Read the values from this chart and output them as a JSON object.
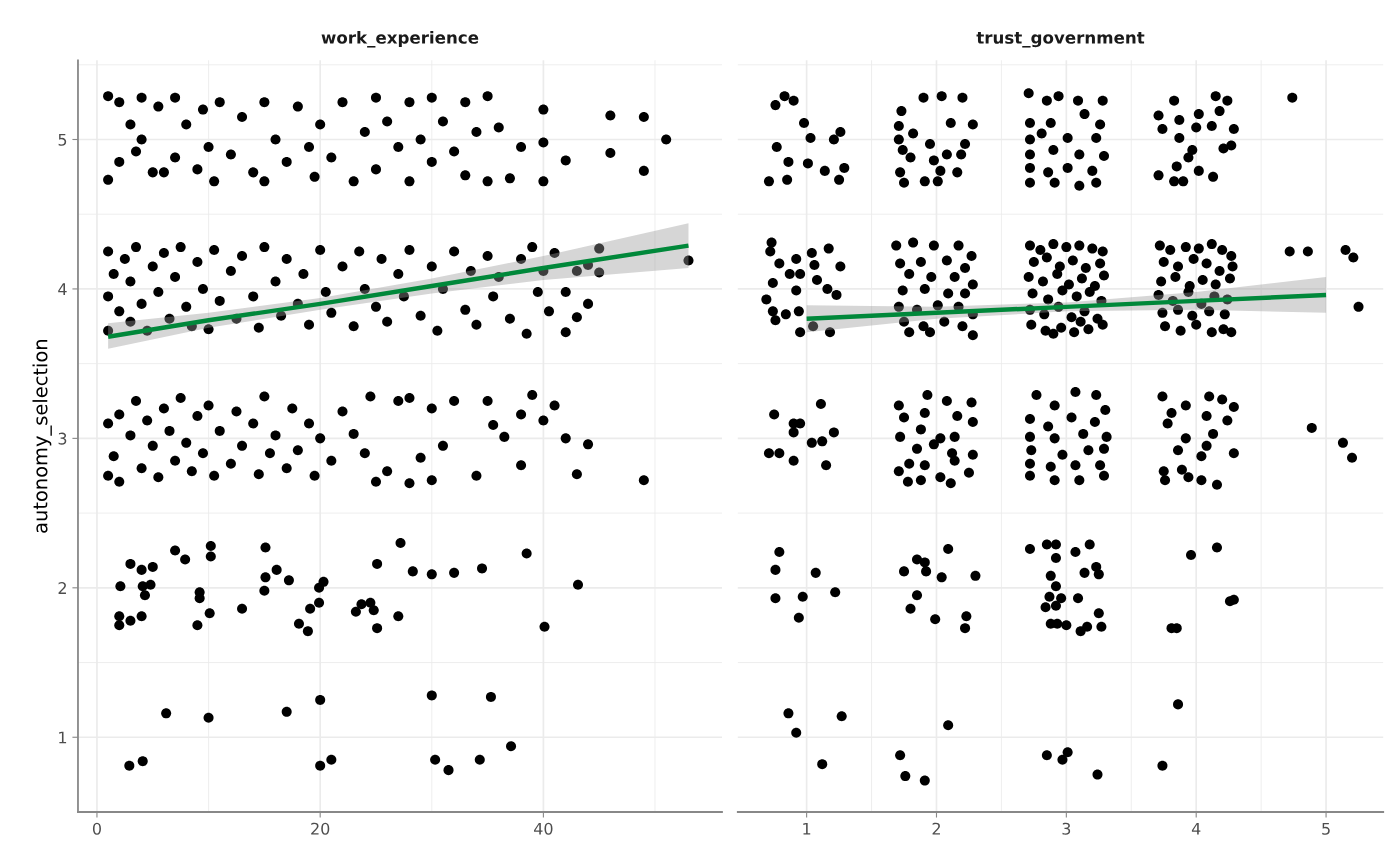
{
  "chart_data": [
    {
      "type": "scatter",
      "title": "work_experience",
      "ylabel": "autonomy_selection",
      "xlim": [
        -1.7,
        56.0
      ],
      "xticks": [
        0,
        20,
        40
      ],
      "ylim": [
        0.5,
        5.53
      ],
      "yticks": [
        1,
        2,
        3,
        4,
        5
      ],
      "grid": true,
      "series": [
        {
          "marker": "circle",
          "color": "#000000",
          "x": [
            2.9,
            4.1,
            6.2,
            10.0,
            17.0,
            20.0,
            20.0,
            21.0,
            30.0,
            30.3,
            31.5,
            34.3,
            35.3,
            37.1,
            2.0,
            2.0,
            2.1,
            3.0,
            3.0,
            4.0,
            4.0,
            4.1,
            4.3,
            4.8,
            5.0,
            7.0,
            7.9,
            9.0,
            9.2,
            9.2,
            10.2,
            10.2,
            10.1,
            13.0,
            15.1,
            15.1,
            15.0,
            16.1,
            17.2,
            18.1,
            18.9,
            19.1,
            19.9,
            20.3,
            19.9,
            23.2,
            23.7,
            24.5,
            25.1,
            25.1,
            24.8,
            27.0,
            27.2,
            28.3,
            30.0,
            32.0,
            34.5,
            38.5,
            40.1,
            43.1,
            1,
            1,
            1.5,
            2,
            2,
            3,
            3.5,
            4,
            4.5,
            5,
            5.5,
            6,
            6.5,
            7,
            7.5,
            8,
            8.5,
            9,
            9.5,
            10,
            10.5,
            11,
            12,
            12.5,
            13,
            14,
            14.5,
            15,
            15.5,
            16,
            17,
            17.5,
            18,
            19,
            19.5,
            20,
            21,
            22,
            23,
            24,
            24.5,
            25,
            26,
            27,
            28,
            28,
            29,
            30,
            30,
            31,
            32,
            34,
            35,
            35.5,
            36.5,
            38,
            38,
            39,
            40,
            41,
            42,
            43,
            44,
            49,
            1,
            1,
            1,
            1.5,
            2,
            2.5,
            3,
            3,
            3.5,
            4,
            4.5,
            5,
            5.5,
            6,
            6.5,
            7,
            7.5,
            8,
            8.5,
            9,
            9.5,
            10,
            10.5,
            11,
            12,
            12.5,
            13,
            14,
            14.5,
            15,
            16,
            16.5,
            17,
            18,
            18.5,
            19,
            20,
            20.5,
            21,
            22,
            23,
            23.5,
            24,
            25,
            25.5,
            26,
            27,
            27.5,
            28,
            29,
            30,
            30.5,
            31,
            32,
            33,
            33.5,
            34,
            35,
            35.5,
            36,
            37,
            38,
            38.5,
            39,
            39.5,
            40,
            40.5,
            41,
            42,
            42,
            43,
            43,
            44,
            44,
            45,
            45,
            53,
            1,
            1,
            2,
            2,
            3,
            3.5,
            4,
            4,
            5,
            5.5,
            6,
            7,
            7,
            8,
            9,
            9.5,
            10,
            10.5,
            11,
            12,
            13,
            14,
            15,
            15,
            16,
            17,
            18,
            19,
            19.5,
            20,
            21,
            22,
            23,
            24,
            25,
            25,
            26,
            27,
            28,
            28,
            29,
            30,
            30,
            31,
            32,
            33,
            33,
            34,
            35,
            35,
            36,
            37,
            38,
            40,
            40,
            40,
            42,
            46,
            46,
            49,
            49,
            51
          ],
          "values": [
            0.81,
            0.84,
            1.16,
            1.13,
            1.17,
            1.25,
            0.81,
            0.85,
            1.28,
            0.85,
            0.78,
            0.85,
            1.27,
            0.94,
            1.81,
            1.75,
            2.01,
            1.78,
            2.16,
            1.81,
            2.12,
            2.01,
            1.95,
            2.02,
            2.14,
            2.25,
            2.19,
            1.75,
            1.97,
            1.93,
            2.28,
            2.21,
            1.83,
            1.86,
            2.27,
            2.07,
            1.98,
            2.12,
            2.05,
            1.76,
            1.71,
            1.86,
            2.0,
            2.04,
            1.9,
            1.84,
            1.89,
            1.9,
            1.73,
            2.16,
            1.85,
            1.81,
            2.3,
            2.11,
            2.09,
            2.1,
            2.13,
            2.23,
            1.74,
            2.02,
            3.1,
            2.75,
            2.88,
            3.16,
            2.71,
            3.02,
            3.25,
            2.8,
            3.12,
            2.95,
            2.74,
            3.2,
            3.05,
            2.85,
            3.27,
            2.97,
            2.78,
            3.15,
            2.9,
            3.22,
            2.75,
            3.05,
            2.83,
            3.18,
            2.95,
            3.1,
            2.76,
            3.28,
            2.9,
            3.02,
            2.8,
            3.2,
            2.92,
            3.1,
            2.75,
            3.0,
            2.85,
            3.18,
            3.03,
            2.9,
            3.28,
            2.71,
            2.78,
            3.25,
            2.7,
            3.27,
            2.87,
            3.2,
            2.72,
            2.95,
            3.25,
            2.75,
            3.25,
            3.09,
            3.01,
            2.82,
            3.16,
            3.29,
            3.12,
            3.22,
            3.0,
            2.76,
            2.96,
            2.72,
            3.95,
            4.25,
            3.72,
            4.1,
            3.85,
            4.2,
            3.78,
            4.05,
            4.28,
            3.9,
            3.72,
            4.15,
            3.98,
            4.24,
            3.8,
            4.08,
            4.28,
            3.88,
            3.75,
            4.18,
            4.0,
            3.73,
            4.26,
            3.92,
            4.12,
            3.8,
            4.22,
            3.95,
            3.74,
            4.28,
            4.05,
            3.82,
            4.2,
            3.9,
            4.1,
            3.76,
            4.26,
            3.98,
            3.84,
            4.15,
            3.75,
            4.25,
            4.0,
            3.88,
            4.2,
            3.78,
            4.1,
            3.95,
            4.26,
            3.82,
            4.15,
            3.72,
            4.0,
            4.25,
            3.86,
            4.12,
            3.76,
            4.22,
            3.95,
            4.08,
            3.8,
            4.2,
            3.7,
            4.28,
            3.98,
            4.12,
            3.85,
            4.24,
            3.71,
            3.98,
            4.12,
            3.81,
            3.9,
            4.16,
            4.27,
            4.11,
            4.19,
            4.73,
            5.29,
            5.25,
            4.85,
            5.1,
            4.92,
            5.28,
            5.0,
            4.78,
            5.22,
            4.78,
            5.28,
            4.88,
            5.1,
            4.8,
            5.2,
            4.95,
            4.72,
            5.25,
            4.9,
            5.15,
            4.78,
            5.25,
            4.72,
            5.0,
            4.85,
            5.22,
            4.95,
            4.75,
            5.1,
            4.88,
            5.25,
            4.72,
            5.05,
            5.28,
            4.8,
            5.12,
            4.95,
            5.25,
            4.72,
            5.0,
            5.28,
            4.85,
            5.12,
            4.92,
            5.25,
            4.76,
            5.05,
            5.29,
            4.72,
            5.08,
            4.74,
            4.95,
            5.2,
            4.72,
            4.98,
            4.86,
            5.16,
            4.91,
            4.79,
            5.15,
            5.0
          ]
        },
        {
          "type": "line",
          "color": "#00883a",
          "x": [
            1,
            10,
            20,
            30,
            40,
            53
          ],
          "values": [
            3.68,
            3.79,
            3.9,
            4.02,
            4.14,
            4.29
          ],
          "lower": [
            3.6,
            3.74,
            3.86,
            3.97,
            4.06,
            4.14
          ],
          "upper": [
            3.77,
            3.84,
            3.94,
            4.07,
            4.22,
            4.44
          ]
        }
      ]
    },
    {
      "type": "scatter",
      "title": "trust_government",
      "xlim": [
        0.47,
        5.44
      ],
      "xticks": [
        1,
        2,
        3,
        4,
        5
      ],
      "ylim": [
        0.5,
        5.53
      ],
      "yticks": [
        1,
        2,
        3,
        4,
        5
      ],
      "tick_labels": "x",
      "grid": true,
      "series": [
        {
          "marker": "circle",
          "color": "#000000",
          "x": [
            0.86,
            1.27,
            0.92,
            1.12,
            2.09,
            1.72,
            1.76,
            1.91,
            2.85,
            3.01,
            2.97,
            3.24,
            3.86,
            3.74,
            0.79,
            0.76,
            1.07,
            0.76,
            0.97,
            1.22,
            0.94,
            1.85,
            1.91,
            1.75,
            1.92,
            2.09,
            2.04,
            2.3,
            1.85,
            1.8,
            1.99,
            2.23,
            2.22,
            2.72,
            2.85,
            2.92,
            3.18,
            3.07,
            2.92,
            2.88,
            3.14,
            3.23,
            3.25,
            2.92,
            2.87,
            2.96,
            3.09,
            2.84,
            2.92,
            3.25,
            2.88,
            2.93,
            3.0,
            3.11,
            3.16,
            3.27,
            3.96,
            4.16,
            4.26,
            4.29,
            3.81,
            3.85,
            1.11,
            0.75,
            0.9,
            0.95,
            0.9,
            1.21,
            1.04,
            1.12,
            0.71,
            0.79,
            0.9,
            1.15,
            1.71,
            1.93,
            2.08,
            2.27,
            1.75,
            1.91,
            2.16,
            2.28,
            1.72,
            1.88,
            2.03,
            2.14,
            1.85,
            1.98,
            2.12,
            2.28,
            1.79,
            1.91,
            2.14,
            1.71,
            1.78,
            1.88,
            2.03,
            2.11,
            2.25,
            2.77,
            2.91,
            3.07,
            3.23,
            3.3,
            2.72,
            2.86,
            3.04,
            3.22,
            2.72,
            2.91,
            3.13,
            3.31,
            2.73,
            2.97,
            3.17,
            3.29,
            2.72,
            2.88,
            3.07,
            3.26,
            2.72,
            2.91,
            3.1,
            3.29,
            3.74,
            4.1,
            4.2,
            3.92,
            4.29,
            3.81,
            4.08,
            4.24,
            3.78,
            3.92,
            4.13,
            4.08,
            3.86,
            4.29,
            4.04,
            3.75,
            3.89,
            3.76,
            3.94,
            4.04,
            4.16,
            4.89,
            5.13,
            5.2,
            0.73,
            0.72,
            0.79,
            0.92,
            1.04,
            1.17,
            1.26,
            1.06,
            0.87,
            0.95,
            0.74,
            1.08,
            0.92,
            1.16,
            1.23,
            0.69,
            0.74,
            0.84,
            0.94,
            0.76,
            1.05,
            0.95,
            1.18,
            1.69,
            1.82,
            1.98,
            2.17,
            2.27,
            1.72,
            1.88,
            2.08,
            2.22,
            1.79,
            1.96,
            2.14,
            2.28,
            1.74,
            1.91,
            2.09,
            2.22,
            1.71,
            1.85,
            2.01,
            2.17,
            2.28,
            1.75,
            1.9,
            2.06,
            2.2,
            1.79,
            1.95,
            2.28,
            2.72,
            2.8,
            2.9,
            3.0,
            3.1,
            3.2,
            3.28,
            2.75,
            2.85,
            2.95,
            3.05,
            3.15,
            3.26,
            2.71,
            2.82,
            2.93,
            3.02,
            3.12,
            3.22,
            3.29,
            2.74,
            2.86,
            2.97,
            3.08,
            3.18,
            3.27,
            2.72,
            2.83,
            2.94,
            3.04,
            3.14,
            3.24,
            2.73,
            2.84,
            2.96,
            3.06,
            3.17,
            3.28,
            2.9,
            3.11,
            3.72,
            3.8,
            3.92,
            4.02,
            4.12,
            4.2,
            4.27,
            3.75,
            3.86,
            3.98,
            4.08,
            4.18,
            4.28,
            3.73,
            3.84,
            3.95,
            4.05,
            4.15,
            4.26,
            3.71,
            3.82,
            3.94,
            4.04,
            4.14,
            4.24,
            3.74,
            3.86,
            3.97,
            4.1,
            4.22,
            3.76,
            3.88,
            4.0,
            4.12,
            4.21,
            4.27,
            4.72,
            4.86,
            5.15,
            5.21,
            5.25,
            0.83,
            0.76,
            0.9,
            0.98,
            1.03,
            0.77,
            0.86,
            1.01,
            1.26,
            1.21,
            0.71,
            0.85,
            1.14,
            1.25,
            1.29,
            1.73,
            1.9,
            2.04,
            2.2,
            1.71,
            1.71,
            1.82,
            1.95,
            2.11,
            2.28,
            2.22,
            1.74,
            1.8,
            1.98,
            2.08,
            2.19,
            1.72,
            1.75,
            1.91,
            2.03,
            2.01,
            2.16,
            2.71,
            2.85,
            2.94,
            3.09,
            3.28,
            2.72,
            2.88,
            3.14,
            3.26,
            2.72,
            2.81,
            3.01,
            3.23,
            2.72,
            2.9,
            3.1,
            3.29,
            2.72,
            2.86,
            3.01,
            3.2,
            2.72,
            2.91,
            3.1,
            3.23,
            3.83,
            4.15,
            4.24,
            3.71,
            3.87,
            4.02,
            4.18,
            4.29,
            3.74,
            4.0,
            4.12,
            3.87,
            4.21,
            4.27,
            3.97,
            3.94,
            3.85,
            3.71,
            4.02,
            4.13,
            3.83,
            3.9,
            4.74
          ],
          "values": [
            1.16,
            1.14,
            1.03,
            0.82,
            1.08,
            0.88,
            0.74,
            0.71,
            0.88,
            0.9,
            0.85,
            0.75,
            1.22,
            0.81,
            2.24,
            2.12,
            2.1,
            1.93,
            1.94,
            1.97,
            1.8,
            2.19,
            2.17,
            2.11,
            2.11,
            2.26,
            2.07,
            2.08,
            1.95,
            1.86,
            1.79,
            1.81,
            1.73,
            2.26,
            2.29,
            2.29,
            2.29,
            2.24,
            2.2,
            2.08,
            2.1,
            2.14,
            2.09,
            2.01,
            1.94,
            1.93,
            1.93,
            1.87,
            1.88,
            1.83,
            1.76,
            1.76,
            1.75,
            1.71,
            1.74,
            1.74,
            2.22,
            2.27,
            1.91,
            1.92,
            1.73,
            1.73,
            3.23,
            3.16,
            3.1,
            3.1,
            3.04,
            3.04,
            2.97,
            2.98,
            2.9,
            2.9,
            2.85,
            2.82,
            3.22,
            3.29,
            3.25,
            3.24,
            3.14,
            3.17,
            3.15,
            3.11,
            3.01,
            3.06,
            3.0,
            3.01,
            2.93,
            2.96,
            2.9,
            2.89,
            2.83,
            2.82,
            2.85,
            2.78,
            2.71,
            2.72,
            2.74,
            2.7,
            2.77,
            3.29,
            3.22,
            3.31,
            3.29,
            3.19,
            3.13,
            3.08,
            3.14,
            3.11,
            3.01,
            3.0,
            3.03,
            3.01,
            2.92,
            2.89,
            2.92,
            2.93,
            2.83,
            2.81,
            2.82,
            2.82,
            2.75,
            2.72,
            2.72,
            2.75,
            3.28,
            3.28,
            3.26,
            3.22,
            3.21,
            3.17,
            3.15,
            3.12,
            3.1,
            3.0,
            3.03,
            2.95,
            2.92,
            2.9,
            2.88,
            2.78,
            2.79,
            2.72,
            2.74,
            2.72,
            2.69,
            3.07,
            2.97,
            2.87,
            4.31,
            4.25,
            4.17,
            4.2,
            4.24,
            4.27,
            4.15,
            4.16,
            4.1,
            4.1,
            4.04,
            4.06,
            3.99,
            4.0,
            3.96,
            3.93,
            3.85,
            3.83,
            3.85,
            3.79,
            3.75,
            3.71,
            3.71,
            4.29,
            4.31,
            4.29,
            4.29,
            4.22,
            4.17,
            4.18,
            4.19,
            4.14,
            4.1,
            4.08,
            4.08,
            4.03,
            3.99,
            4.0,
            3.97,
            3.97,
            3.88,
            3.86,
            3.89,
            3.88,
            3.83,
            3.78,
            3.75,
            3.78,
            3.75,
            3.71,
            3.71,
            3.69,
            4.29,
            4.26,
            4.3,
            4.28,
            4.29,
            4.27,
            4.25,
            4.18,
            4.21,
            4.15,
            4.19,
            4.14,
            4.17,
            4.08,
            4.05,
            4.1,
            4.03,
            4.07,
            4.02,
            4.09,
            3.97,
            3.93,
            3.99,
            3.95,
            3.98,
            3.92,
            3.86,
            3.83,
            3.88,
            3.81,
            3.85,
            3.8,
            3.76,
            3.72,
            3.74,
            3.71,
            3.73,
            3.76,
            3.7,
            3.78,
            4.29,
            4.26,
            4.28,
            4.27,
            4.3,
            4.26,
            4.22,
            4.18,
            4.15,
            4.2,
            4.17,
            4.12,
            4.15,
            4.05,
            4.08,
            4.02,
            4.06,
            4.03,
            4.07,
            3.96,
            3.92,
            3.98,
            3.9,
            3.95,
            3.93,
            3.84,
            3.86,
            3.82,
            3.85,
            3.83,
            3.75,
            3.72,
            3.76,
            3.71,
            3.73,
            3.71,
            4.25,
            4.25,
            4.26,
            4.21,
            3.88,
            5.29,
            5.23,
            5.26,
            5.11,
            5.01,
            4.95,
            4.85,
            4.84,
            5.05,
            5.0,
            4.72,
            4.73,
            4.79,
            4.73,
            4.81,
            5.19,
            5.28,
            5.29,
            5.28,
            5.09,
            5.0,
            5.04,
            4.97,
            5.11,
            5.1,
            4.97,
            4.93,
            4.88,
            4.86,
            4.9,
            4.9,
            4.78,
            4.71,
            4.72,
            4.79,
            4.72,
            4.78,
            5.31,
            5.26,
            5.29,
            5.26,
            5.26,
            5.11,
            5.11,
            5.17,
            5.1,
            5.0,
            5.04,
            5.01,
            5.01,
            4.9,
            4.93,
            4.9,
            4.89,
            4.81,
            4.78,
            4.81,
            4.79,
            4.71,
            4.71,
            4.69,
            4.71,
            5.26,
            5.29,
            5.26,
            5.16,
            5.13,
            5.17,
            5.19,
            5.07,
            5.07,
            5.08,
            5.09,
            5.01,
            4.94,
            4.96,
            4.93,
            4.88,
            4.82,
            4.76,
            4.79,
            4.75,
            4.72,
            4.72,
            5.28
          ]
        },
        {
          "type": "line",
          "color": "#00883a",
          "x": [
            1,
            2,
            3,
            4,
            5
          ],
          "values": [
            3.8,
            3.84,
            3.88,
            3.92,
            3.96
          ],
          "lower": [
            3.71,
            3.8,
            3.85,
            3.86,
            3.84
          ],
          "upper": [
            3.89,
            3.88,
            3.91,
            3.98,
            4.08
          ]
        }
      ]
    }
  ]
}
